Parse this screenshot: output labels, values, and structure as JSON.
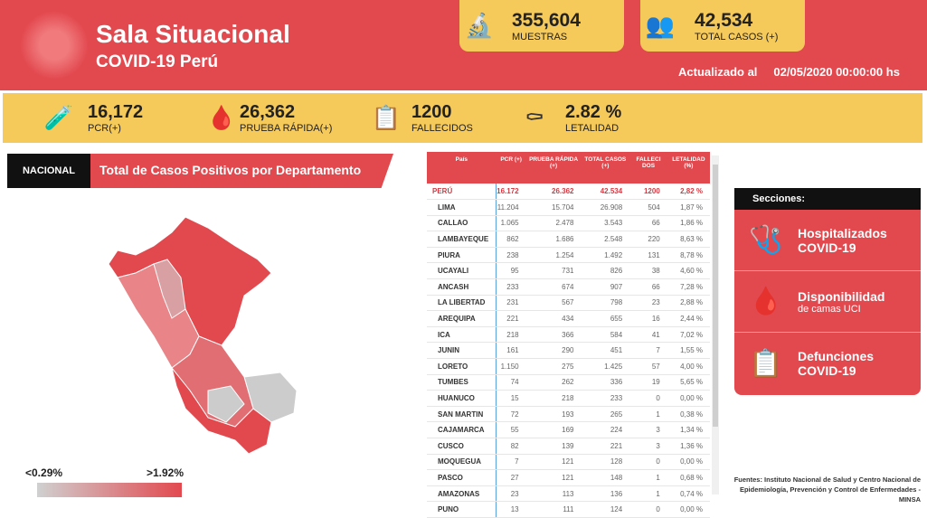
{
  "header": {
    "title": "Sala Situacional",
    "subtitle": "COVID-19 Perú",
    "updated_label": "Actualizado al",
    "updated_value": "02/05/2020 00:00:00 hs"
  },
  "cards": [
    {
      "icon": "microscope-icon",
      "value": "355,604",
      "label": "MUESTRAS"
    },
    {
      "icon": "people-icon",
      "value": "42,534",
      "label": "TOTAL CASOS (+)"
    }
  ],
  "kpis": [
    {
      "icon": "test-strip-icon",
      "value": "16,172",
      "label": "PCR(+)"
    },
    {
      "icon": "iv-bag-icon",
      "value": "26,362",
      "label": "PRUEBA RÁPIDA(+)"
    },
    {
      "icon": "clipboard-icon",
      "value": "1200",
      "label": "FALLECIDOS"
    },
    {
      "icon": "grave-icon",
      "value": "2.82 %",
      "label": "LETALIDAD"
    }
  ],
  "map_section": {
    "tab": "NACIONAL",
    "title": "Total de Casos Positivos por Departamento",
    "legend_min": "<0.29%",
    "legend_max": ">1.92%"
  },
  "table": {
    "headers": [
      "País",
      "PCR (+)",
      "PRUEBA RÁPIDA (+)",
      "TOTAL CASOS (+)",
      "FALLECI DOS",
      "LETALIDAD (%)"
    ],
    "total": [
      "PERÚ",
      "16.172",
      "26.362",
      "42.534",
      "1200",
      "2,82 %"
    ],
    "rows": [
      [
        "LIMA",
        "11.204",
        "15.704",
        "26.908",
        "504",
        "1,87 %"
      ],
      [
        "CALLAO",
        "1.065",
        "2.478",
        "3.543",
        "66",
        "1,86 %"
      ],
      [
        "LAMBAYEQUE",
        "862",
        "1.686",
        "2.548",
        "220",
        "8,63 %"
      ],
      [
        "PIURA",
        "238",
        "1.254",
        "1.492",
        "131",
        "8,78 %"
      ],
      [
        "UCAYALI",
        "95",
        "731",
        "826",
        "38",
        "4,60 %"
      ],
      [
        "ANCASH",
        "233",
        "674",
        "907",
        "66",
        "7,28 %"
      ],
      [
        "LA LIBERTAD",
        "231",
        "567",
        "798",
        "23",
        "2,88 %"
      ],
      [
        "AREQUIPA",
        "221",
        "434",
        "655",
        "16",
        "2,44 %"
      ],
      [
        "ICA",
        "218",
        "366",
        "584",
        "41",
        "7,02 %"
      ],
      [
        "JUNIN",
        "161",
        "290",
        "451",
        "7",
        "1,55 %"
      ],
      [
        "LORETO",
        "1.150",
        "275",
        "1.425",
        "57",
        "4,00 %"
      ],
      [
        "TUMBES",
        "74",
        "262",
        "336",
        "19",
        "5,65 %"
      ],
      [
        "HUANUCO",
        "15",
        "218",
        "233",
        "0",
        "0,00 %"
      ],
      [
        "SAN MARTIN",
        "72",
        "193",
        "265",
        "1",
        "0,38 %"
      ],
      [
        "CAJAMARCA",
        "55",
        "169",
        "224",
        "3",
        "1,34 %"
      ],
      [
        "CUSCO",
        "82",
        "139",
        "221",
        "3",
        "1,36 %"
      ],
      [
        "MOQUEGUA",
        "7",
        "121",
        "128",
        "0",
        "0,00 %"
      ],
      [
        "PASCO",
        "27",
        "121",
        "148",
        "1",
        "0,68 %"
      ],
      [
        "AMAZONAS",
        "23",
        "113",
        "136",
        "1",
        "0,74 %"
      ],
      [
        "PUNO",
        "13",
        "111",
        "124",
        "0",
        "0,00 %"
      ]
    ]
  },
  "sections": {
    "title": "Secciones:",
    "items": [
      {
        "icon": "stethoscope-icon",
        "a": "Hospitalizados",
        "b": "COVID-19"
      },
      {
        "icon": "iv-bag-icon",
        "a": "Disponibilidad",
        "b": "de camas UCI"
      },
      {
        "icon": "clipboard-icon",
        "a": "Defunciones",
        "b": "COVID-19"
      }
    ]
  },
  "sources": "Fuentes: Instituto Nacional de Salud y Centro Nacional de Epidemiología, Prevención y Control de Enfermedades -MINSA"
}
